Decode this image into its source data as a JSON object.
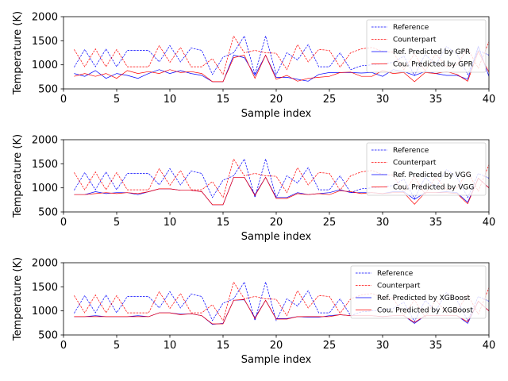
{
  "chart_data": [
    {
      "type": "line",
      "xlabel": "Sample index",
      "ylabel": "Temperature (K)",
      "xlim": [
        0,
        40
      ],
      "ylim": [
        500,
        2000
      ],
      "xticks": [
        "0",
        "5",
        "10",
        "15",
        "20",
        "25",
        "30",
        "35",
        "40"
      ],
      "yticks": [
        "500",
        "1000",
        "1500",
        "2000"
      ],
      "legend_position": "top-right",
      "x": [
        1,
        2,
        3,
        4,
        5,
        6,
        7,
        8,
        9,
        10,
        11,
        12,
        13,
        14,
        15,
        16,
        17,
        18,
        19,
        20,
        21,
        22,
        23,
        24,
        25,
        26,
        27,
        28,
        29,
        30,
        31,
        32,
        33,
        34,
        35,
        36,
        37,
        38,
        39,
        40
      ],
      "series": [
        {
          "name": "Reference",
          "color": "#0000ff",
          "style": "dashed",
          "values": [
            950,
            1320,
            960,
            1330,
            960,
            1300,
            1300,
            1300,
            1060,
            1400,
            1060,
            1350,
            1300,
            800,
            1160,
            1250,
            1600,
            800,
            1600,
            800,
            1250,
            1100,
            1420,
            960,
            960,
            1250,
            900,
            980,
            1000,
            1020,
            1050,
            1180,
            780,
            1220,
            1000,
            1380,
            1220,
            800,
            1300,
            1200
          ]
        },
        {
          "name": "Counterpart",
          "color": "#ff0000",
          "style": "dashed",
          "values": [
            1320,
            960,
            1330,
            960,
            1320,
            960,
            960,
            960,
            1400,
            1050,
            1360,
            960,
            960,
            1130,
            800,
            1600,
            1250,
            1300,
            1250,
            1240,
            900,
            1420,
            1060,
            1320,
            1300,
            950,
            1250,
            1330,
            1360,
            1280,
            1260,
            900,
            1230,
            870,
            1230,
            960,
            1000,
            1340,
            930,
            1480
          ]
        },
        {
          "name": "Ref. Predicted by GPR",
          "color": "#0000ff",
          "style": "solid",
          "values": [
            820,
            760,
            880,
            720,
            820,
            780,
            720,
            820,
            900,
            820,
            880,
            820,
            780,
            650,
            650,
            1200,
            1150,
            780,
            1200,
            740,
            740,
            700,
            660,
            800,
            840,
            840,
            840,
            830,
            840,
            760,
            900,
            860,
            780,
            860,
            820,
            780,
            780,
            700,
            1380,
            760
          ]
        },
        {
          "name": "Cou. Predicted by GPR",
          "color": "#ff0000",
          "style": "solid",
          "values": [
            760,
            820,
            760,
            820,
            720,
            880,
            820,
            860,
            820,
            900,
            840,
            860,
            820,
            650,
            650,
            1150,
            1200,
            720,
            1200,
            700,
            780,
            660,
            720,
            740,
            760,
            840,
            850,
            760,
            760,
            880,
            820,
            840,
            650,
            840,
            820,
            860,
            800,
            660,
            1280,
            850
          ]
        }
      ]
    },
    {
      "type": "line",
      "xlabel": "Sample index",
      "ylabel": "Temperature (K)",
      "xlim": [
        0,
        40
      ],
      "ylim": [
        500,
        2000
      ],
      "xticks": [
        "0",
        "5",
        "10",
        "15",
        "20",
        "25",
        "30",
        "35",
        "40"
      ],
      "yticks": [
        "500",
        "1000",
        "1500",
        "2000"
      ],
      "legend_position": "top-right",
      "x": [
        1,
        2,
        3,
        4,
        5,
        6,
        7,
        8,
        9,
        10,
        11,
        12,
        13,
        14,
        15,
        16,
        17,
        18,
        19,
        20,
        21,
        22,
        23,
        24,
        25,
        26,
        27,
        28,
        29,
        30,
        31,
        32,
        33,
        34,
        35,
        36,
        37,
        38,
        39,
        40
      ],
      "series": [
        {
          "name": "Reference",
          "color": "#0000ff",
          "style": "dashed",
          "values": [
            950,
            1320,
            960,
            1330,
            960,
            1300,
            1300,
            1300,
            1060,
            1400,
            1060,
            1350,
            1300,
            800,
            1160,
            1250,
            1600,
            800,
            1600,
            800,
            1250,
            1100,
            1420,
            960,
            960,
            1250,
            900,
            980,
            1000,
            1020,
            1050,
            1180,
            780,
            1220,
            1000,
            1380,
            1220,
            800,
            1300,
            1200
          ]
        },
        {
          "name": "Counterpart",
          "color": "#ff0000",
          "style": "dashed",
          "values": [
            1320,
            960,
            1330,
            960,
            1320,
            960,
            960,
            960,
            1400,
            1050,
            1360,
            960,
            960,
            1130,
            800,
            1600,
            1250,
            1300,
            1250,
            1240,
            900,
            1420,
            1060,
            1320,
            1300,
            950,
            1250,
            1330,
            1360,
            1280,
            1260,
            900,
            1230,
            870,
            1230,
            960,
            1000,
            1340,
            930,
            1480
          ]
        },
        {
          "name": "Ref. Predicted by VGG",
          "color": "#0000ff",
          "style": "solid",
          "values": [
            860,
            860,
            920,
            880,
            900,
            900,
            860,
            920,
            980,
            980,
            950,
            950,
            920,
            650,
            650,
            1220,
            1220,
            860,
            1220,
            800,
            800,
            900,
            860,
            880,
            900,
            960,
            900,
            900,
            900,
            880,
            920,
            920,
            760,
            900,
            900,
            920,
            900,
            700,
            1200,
            1000
          ]
        },
        {
          "name": "Cou. Predicted by VGG",
          "color": "#ff0000",
          "style": "solid",
          "values": [
            860,
            860,
            880,
            900,
            880,
            900,
            880,
            920,
            980,
            980,
            950,
            950,
            920,
            650,
            650,
            1220,
            1220,
            840,
            1220,
            780,
            780,
            880,
            860,
            880,
            860,
            940,
            920,
            880,
            900,
            880,
            900,
            900,
            660,
            900,
            900,
            900,
            880,
            670,
            1200,
            1000
          ]
        }
      ]
    },
    {
      "type": "line",
      "xlabel": "Sample index",
      "ylabel": "Temperature (K)",
      "xlim": [
        0,
        40
      ],
      "ylim": [
        500,
        2000
      ],
      "xticks": [
        "0",
        "5",
        "10",
        "15",
        "20",
        "25",
        "30",
        "35",
        "40"
      ],
      "yticks": [
        "500",
        "1000",
        "1500",
        "2000"
      ],
      "legend_position": "top-right",
      "x": [
        1,
        2,
        3,
        4,
        5,
        6,
        7,
        8,
        9,
        10,
        11,
        12,
        13,
        14,
        15,
        16,
        17,
        18,
        19,
        20,
        21,
        22,
        23,
        24,
        25,
        26,
        27,
        28,
        29,
        30,
        31,
        32,
        33,
        34,
        35,
        36,
        37,
        38,
        39,
        40
      ],
      "series": [
        {
          "name": "Reference",
          "color": "#0000ff",
          "style": "dashed",
          "values": [
            950,
            1320,
            960,
            1330,
            960,
            1300,
            1300,
            1300,
            1060,
            1400,
            1060,
            1350,
            1300,
            800,
            1160,
            1250,
            1600,
            800,
            1600,
            800,
            1250,
            1100,
            1420,
            960,
            960,
            1250,
            900,
            980,
            1000,
            1020,
            1050,
            1180,
            780,
            1220,
            1000,
            1380,
            1220,
            800,
            1300,
            1200
          ]
        },
        {
          "name": "Counterpart",
          "color": "#ff0000",
          "style": "dashed",
          "values": [
            1320,
            960,
            1330,
            960,
            1320,
            960,
            960,
            960,
            1400,
            1050,
            1360,
            960,
            960,
            1130,
            800,
            1600,
            1250,
            1300,
            1250,
            1240,
            900,
            1420,
            1060,
            1320,
            1300,
            950,
            1250,
            1330,
            1360,
            1280,
            1260,
            900,
            1230,
            870,
            1230,
            960,
            1000,
            1340,
            930,
            1480
          ]
        },
        {
          "name": "Ref. Predicted by XGBoost",
          "color": "#0000ff",
          "style": "solid",
          "values": [
            880,
            880,
            900,
            880,
            880,
            880,
            900,
            880,
            960,
            960,
            930,
            940,
            900,
            720,
            740,
            1220,
            1230,
            860,
            1220,
            840,
            840,
            880,
            870,
            870,
            900,
            920,
            900,
            900,
            900,
            880,
            900,
            900,
            740,
            900,
            900,
            900,
            900,
            740,
            1200,
            1000
          ]
        },
        {
          "name": "Cou. Predicted by XGBoost",
          "color": "#ff0000",
          "style": "solid",
          "values": [
            880,
            880,
            880,
            880,
            880,
            880,
            880,
            880,
            960,
            960,
            920,
            940,
            900,
            730,
            730,
            1220,
            1240,
            840,
            1220,
            830,
            830,
            880,
            880,
            880,
            880,
            920,
            900,
            900,
            900,
            880,
            900,
            900,
            760,
            900,
            900,
            900,
            900,
            770,
            1200,
            1000
          ]
        }
      ]
    }
  ]
}
